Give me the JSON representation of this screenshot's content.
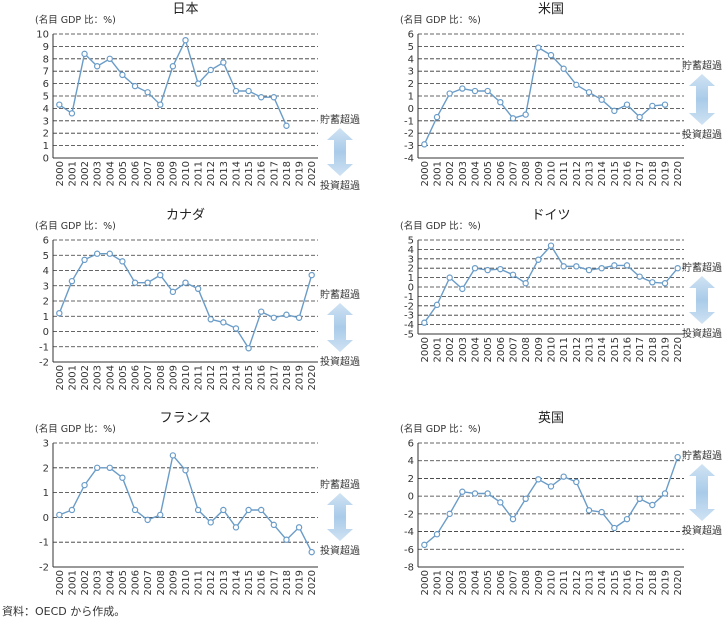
{
  "source_note": "資料：OECD から作成。",
  "indicator": {
    "up_label": "貯蓄超過",
    "down_label": "投資超過",
    "arrow_color": "#a9cbe9"
  },
  "style": {
    "line_color": "#6a9cc8",
    "marker_fill": "#ffffff",
    "grid_color": "#333333"
  },
  "chart_data": [
    {
      "type": "line",
      "title": "日本",
      "ylabel": "(名目 GDP 比：%)",
      "xlabel": "",
      "x": [
        "2000",
        "2001",
        "2002",
        "2003",
        "2004",
        "2005",
        "2006",
        "2007",
        "2008",
        "2009",
        "2010",
        "2011",
        "2012",
        "2013",
        "2014",
        "2015",
        "2016",
        "2017",
        "2018",
        "2019",
        "2020"
      ],
      "ylim": [
        0,
        10
      ],
      "yticks": [
        0,
        1,
        2,
        3,
        4,
        5,
        6,
        7,
        8,
        9,
        10
      ],
      "grid": "dashed-horizontal",
      "series": [
        {
          "values": [
            4.3,
            3.6,
            8.4,
            7.4,
            8.0,
            6.7,
            5.8,
            5.3,
            4.3,
            7.4,
            9.5,
            6.0,
            7.1,
            7.7,
            5.4,
            5.4,
            4.9,
            4.9,
            2.6,
            null,
            null
          ]
        }
      ]
    },
    {
      "type": "line",
      "title": "米国",
      "ylabel": "(名目 GDP 比：%)",
      "xlabel": "",
      "x": [
        "2000",
        "2001",
        "2002",
        "2003",
        "2004",
        "2005",
        "2006",
        "2007",
        "2008",
        "2009",
        "2010",
        "2011",
        "2012",
        "2013",
        "2014",
        "2015",
        "2016",
        "2017",
        "2018",
        "2019",
        "2020"
      ],
      "ylim": [
        -4,
        6
      ],
      "yticks": [
        -4,
        -3,
        -2,
        -1,
        0,
        1,
        2,
        3,
        4,
        5,
        6
      ],
      "grid": "dashed-horizontal",
      "series": [
        {
          "values": [
            -2.9,
            -0.7,
            1.2,
            1.6,
            1.4,
            1.4,
            0.5,
            -0.8,
            -0.5,
            4.9,
            4.3,
            3.2,
            1.9,
            1.3,
            0.7,
            -0.2,
            0.3,
            -0.7,
            0.2,
            0.3,
            null
          ]
        }
      ]
    },
    {
      "type": "line",
      "title": "カナダ",
      "ylabel": "(名目 GDP 比：%)",
      "xlabel": "",
      "x": [
        "2000",
        "2001",
        "2002",
        "2003",
        "2004",
        "2005",
        "2006",
        "2007",
        "2008",
        "2009",
        "2010",
        "2011",
        "2012",
        "2013",
        "2014",
        "2015",
        "2016",
        "2017",
        "2018",
        "2019",
        "2020"
      ],
      "ylim": [
        -2,
        6
      ],
      "yticks": [
        -2,
        -1,
        0,
        1,
        2,
        3,
        4,
        5,
        6
      ],
      "grid": "dashed-horizontal",
      "series": [
        {
          "values": [
            1.2,
            3.3,
            4.7,
            5.1,
            5.1,
            4.6,
            3.2,
            3.2,
            3.7,
            2.6,
            3.2,
            2.8,
            0.8,
            0.6,
            0.2,
            -1.1,
            1.3,
            0.9,
            1.1,
            0.9,
            3.7
          ]
        }
      ]
    },
    {
      "type": "line",
      "title": "ドイツ",
      "ylabel": "(名目 GDP 比：%)",
      "xlabel": "",
      "x": [
        "2000",
        "2001",
        "2002",
        "2003",
        "2004",
        "2005",
        "2006",
        "2007",
        "2008",
        "2009",
        "2010",
        "2011",
        "2012",
        "2013",
        "2014",
        "2015",
        "2016",
        "2017",
        "2018",
        "2019",
        "2020"
      ],
      "ylim": [
        -5,
        5
      ],
      "yticks": [
        -5,
        -4,
        -3,
        -2,
        -1,
        0,
        1,
        2,
        3,
        4,
        5
      ],
      "grid": "dashed-horizontal",
      "series": [
        {
          "values": [
            -3.8,
            -1.9,
            1.0,
            -0.2,
            2.0,
            1.8,
            1.9,
            1.3,
            0.4,
            2.9,
            4.4,
            2.2,
            2.2,
            1.8,
            2.0,
            2.3,
            2.3,
            1.1,
            0.5,
            0.4,
            2.0
          ]
        }
      ]
    },
    {
      "type": "line",
      "title": "フランス",
      "ylabel": "(名目 GDP 比：%)",
      "xlabel": "",
      "x": [
        "2000",
        "2001",
        "2002",
        "2003",
        "2004",
        "2005",
        "2006",
        "2007",
        "2008",
        "2009",
        "2010",
        "2011",
        "2012",
        "2013",
        "2014",
        "2015",
        "2016",
        "2017",
        "2018",
        "2019",
        "2020"
      ],
      "ylim": [
        -2,
        3
      ],
      "yticks": [
        -2,
        -1,
        0,
        1,
        2,
        3
      ],
      "grid": "dashed-horizontal",
      "series": [
        {
          "values": [
            0.1,
            0.3,
            1.3,
            2.0,
            2.0,
            1.6,
            0.3,
            -0.1,
            0.1,
            2.5,
            1.9,
            0.3,
            -0.2,
            0.3,
            -0.4,
            0.3,
            0.3,
            -0.3,
            -0.9,
            -0.4,
            -1.4
          ]
        }
      ]
    },
    {
      "type": "line",
      "title": "英国",
      "ylabel": "(名目 GDP 比：%)",
      "xlabel": "",
      "x": [
        "2000",
        "2001",
        "2002",
        "2003",
        "2004",
        "2005",
        "2006",
        "2007",
        "2008",
        "2009",
        "2010",
        "2011",
        "2012",
        "2013",
        "2014",
        "2015",
        "2016",
        "2017",
        "2018",
        "2019",
        "2020"
      ],
      "ylim": [
        -8,
        6
      ],
      "yticks": [
        -8,
        -6,
        -4,
        -2,
        0,
        2,
        4,
        6
      ],
      "grid": "dashed-horizontal",
      "series": [
        {
          "values": [
            -5.5,
            -4.3,
            -2.0,
            0.5,
            0.3,
            0.3,
            -0.7,
            -2.6,
            -0.3,
            1.9,
            1.1,
            2.2,
            1.6,
            -1.6,
            -1.8,
            -3.6,
            -2.6,
            -0.3,
            -1.0,
            0.3,
            4.4
          ]
        }
      ]
    }
  ]
}
